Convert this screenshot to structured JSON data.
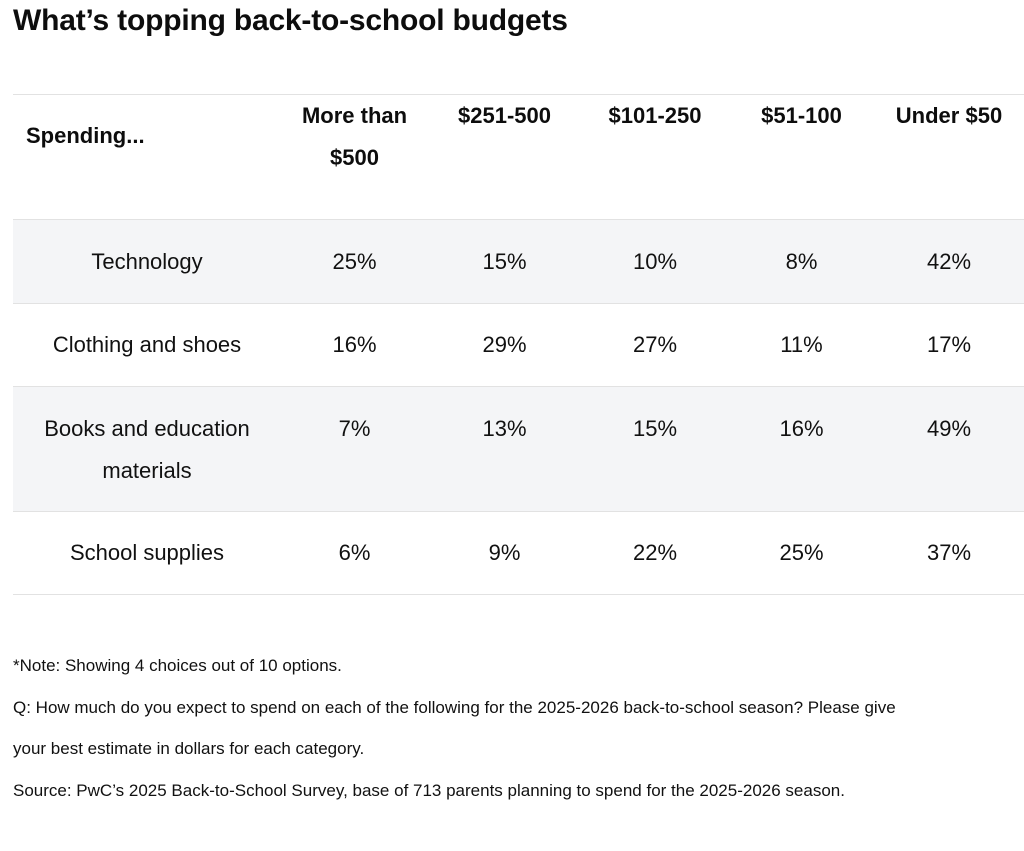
{
  "title": "What’s topping back-to-school budgets",
  "chart_data": {
    "type": "table",
    "title": "What’s topping back-to-school budgets",
    "row_header_label": "Spending...",
    "columns": [
      "More than $500",
      "$251-500",
      "$101-250",
      "$51-100",
      "Under $50"
    ],
    "rows": [
      {
        "category": "Technology",
        "values": [
          "25%",
          "15%",
          "10%",
          "8%",
          "42%"
        ]
      },
      {
        "category": "Clothing and shoes",
        "values": [
          "16%",
          "29%",
          "27%",
          "11%",
          "17%"
        ]
      },
      {
        "category": "Books and education materials",
        "values": [
          "7%",
          "13%",
          "15%",
          "16%",
          "49%"
        ]
      },
      {
        "category": "School supplies",
        "values": [
          "6%",
          "9%",
          "22%",
          "25%",
          "37%"
        ]
      }
    ]
  },
  "notes": {
    "note": "*Note: Showing 4 choices out of 10 options.",
    "question": "Q: How much do you expect to spend on each of the following for the 2025-2026 back-to-school season? Please give your best estimate in dollars for each category.",
    "source": "Source: PwC’s 2025 Back-to-School Survey, base of 713 parents planning to spend for the 2025-2026 season."
  }
}
